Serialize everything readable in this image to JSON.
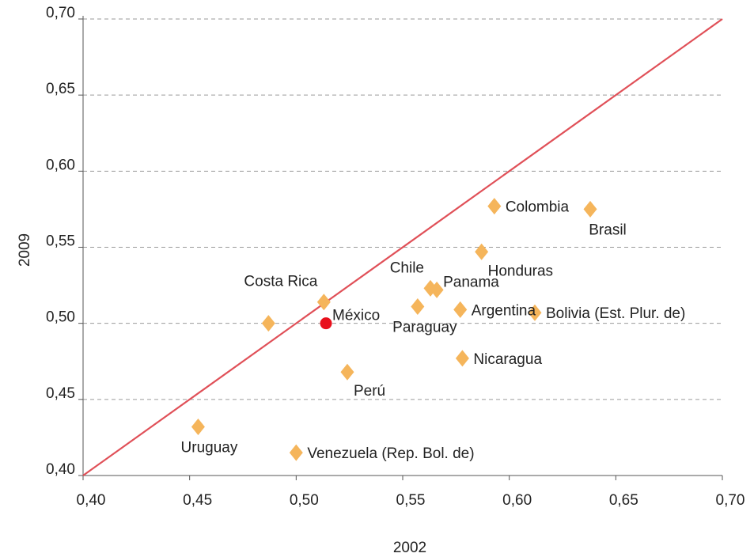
{
  "chart_data": {
    "type": "scatter",
    "xlabel": "2002",
    "ylabel": "2009",
    "xlim": [
      0.4,
      0.7
    ],
    "ylim": [
      0.4,
      0.7
    ],
    "xticks": [
      "0,40",
      "0,45",
      "0,50",
      "0,55",
      "0,60",
      "0,65",
      "0,70"
    ],
    "yticks": [
      "0,40",
      "0,45",
      "0,50",
      "0,55",
      "0,60",
      "0,65",
      "0,70"
    ],
    "tick_values": [
      0.4,
      0.45,
      0.5,
      0.55,
      0.6,
      0.65,
      0.7
    ],
    "grid": "horizontal-dashed",
    "reference_line": {
      "from": [
        0.4,
        0.4
      ],
      "to": [
        0.7,
        0.7
      ],
      "color": "#e05058"
    },
    "marker_color": "#f5b55b",
    "highlight_color": "#e8101c",
    "points": [
      {
        "label": "Colombia",
        "x": 0.593,
        "y": 0.577,
        "label_pos": "right"
      },
      {
        "label": "Brasil",
        "x": 0.638,
        "y": 0.575,
        "label_pos": "below"
      },
      {
        "label": "Honduras",
        "x": 0.587,
        "y": 0.547,
        "label_pos": "below-right"
      },
      {
        "label": "Chile",
        "x": 0.563,
        "y": 0.523,
        "label_pos": "above-left"
      },
      {
        "label": "Panama",
        "x": 0.566,
        "y": 0.522,
        "label_pos": "above-right"
      },
      {
        "label": "Paraguay",
        "x": 0.557,
        "y": 0.511,
        "label_pos": "below"
      },
      {
        "label": "Argentina",
        "x": 0.577,
        "y": 0.509,
        "label_pos": "right"
      },
      {
        "label": "Bolivia (Est. Plur. de)",
        "x": 0.612,
        "y": 0.507,
        "label_pos": "right"
      },
      {
        "label": "Costa Rica",
        "x": 0.513,
        "y": 0.514,
        "label_pos": "above-left"
      },
      {
        "label": "",
        "x": 0.487,
        "y": 0.5,
        "label_pos": "none"
      },
      {
        "label": "México",
        "x": 0.514,
        "y": 0.5,
        "label_pos": "above-right",
        "highlight": true
      },
      {
        "label": "Nicaragua",
        "x": 0.578,
        "y": 0.477,
        "label_pos": "right"
      },
      {
        "label": "Perú",
        "x": 0.524,
        "y": 0.468,
        "label_pos": "below-right"
      },
      {
        "label": "Uruguay",
        "x": 0.454,
        "y": 0.432,
        "label_pos": "below"
      },
      {
        "label": "Venezuela (Rep. Bol. de)",
        "x": 0.5,
        "y": 0.415,
        "label_pos": "right"
      }
    ]
  }
}
